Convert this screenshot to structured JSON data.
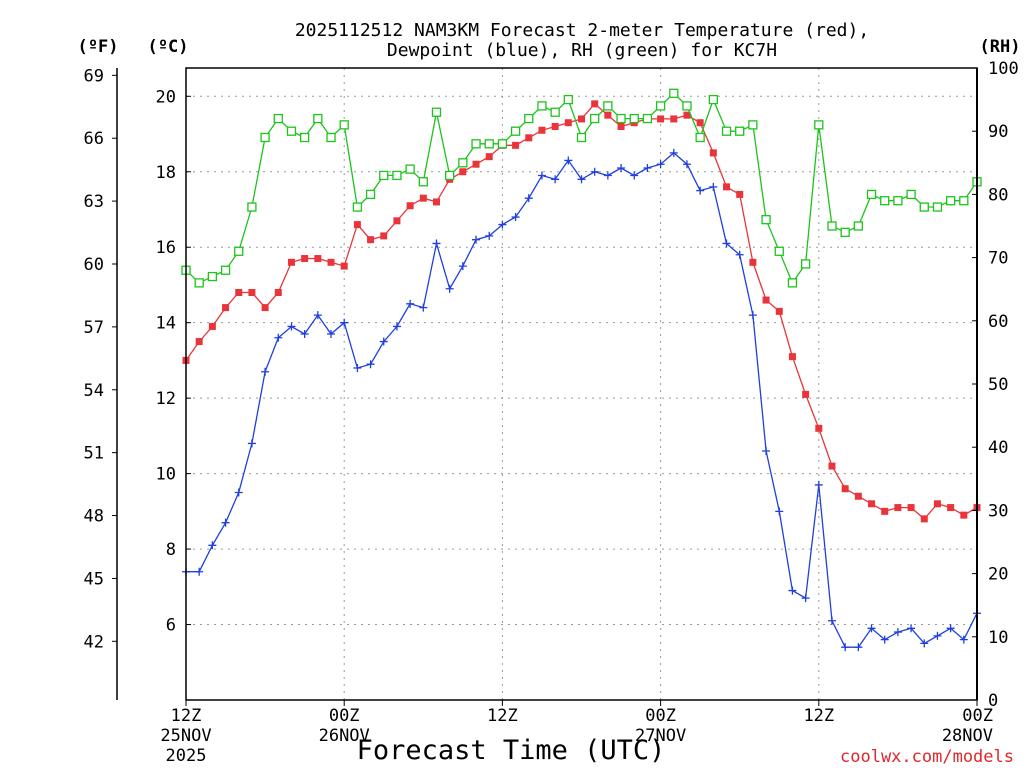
{
  "chart_data": {
    "type": "line",
    "title_line1": "2025112512 NAM3KM Forecast 2-meter Temperature (red),",
    "title_line2": "Dewpoint (blue), RH (green) for KC7H",
    "units": {
      "fahrenheit": "(ºF)",
      "celsius": "(ºC)",
      "rh": "(RH)"
    },
    "xlabel": "Forecast Time (UTC)",
    "credit": "coolwx.com/models",
    "x_hours_range": [
      0,
      60
    ],
    "y_celsius_range": [
      4,
      20.75
    ],
    "y_rh_range": [
      0,
      100
    ],
    "ticks_celsius": [
      "6",
      "8",
      "10",
      "12",
      "14",
      "16",
      "18",
      "20"
    ],
    "ticks_fahrenheit": [
      "42",
      "45",
      "48",
      "51",
      "54",
      "57",
      "60",
      "63",
      "66",
      "69"
    ],
    "ticks_rh": [
      "0",
      "10",
      "20",
      "30",
      "40",
      "50",
      "60",
      "70",
      "80",
      "90",
      "100"
    ],
    "x_ticks": [
      {
        "hour": 0,
        "line1": "12Z",
        "line2": "25NOV",
        "line3": "2025"
      },
      {
        "hour": 12,
        "line1": "00Z",
        "line2": "26NOV",
        "line3": ""
      },
      {
        "hour": 24,
        "line1": "12Z",
        "line2": "",
        "line3": ""
      },
      {
        "hour": 36,
        "line1": "00Z",
        "line2": "27NOV",
        "line3": ""
      },
      {
        "hour": 48,
        "line1": "12Z",
        "line2": "",
        "line3": ""
      },
      {
        "hour": 60,
        "line1": "00Z",
        "line2": "28NOV",
        "line3": ""
      }
    ],
    "series": [
      {
        "name": "Temperature",
        "axis": "celsius",
        "color": "#e8343a",
        "marker": "filled-square",
        "x": [
          0,
          1,
          2,
          3,
          4,
          5,
          6,
          7,
          8,
          9,
          10,
          11,
          12,
          13,
          14,
          15,
          16,
          17,
          18,
          19,
          20,
          21,
          22,
          23,
          24,
          25,
          26,
          27,
          28,
          29,
          30,
          31,
          32,
          33,
          34,
          35,
          36,
          37,
          38,
          39,
          40,
          41,
          42,
          43,
          44,
          45,
          46,
          47,
          48,
          49,
          50,
          51,
          52,
          53,
          54,
          55,
          56,
          57,
          58,
          59,
          60
        ],
        "values": [
          13.0,
          13.5,
          13.9,
          14.4,
          14.8,
          14.8,
          14.4,
          14.8,
          15.6,
          15.7,
          15.7,
          15.6,
          15.5,
          16.6,
          16.2,
          16.3,
          16.7,
          17.1,
          17.3,
          17.2,
          17.8,
          18.0,
          18.2,
          18.4,
          18.7,
          18.7,
          18.9,
          19.1,
          19.2,
          19.3,
          19.4,
          19.8,
          19.5,
          19.2,
          19.3,
          19.4,
          19.4,
          19.4,
          19.5,
          19.3,
          18.5,
          17.6,
          17.4,
          15.6,
          14.6,
          14.3,
          13.1,
          12.1,
          11.2,
          10.2,
          9.6,
          9.4,
          9.2,
          9.0,
          9.1,
          9.1,
          8.8,
          9.2,
          9.1,
          8.9,
          9.1
        ]
      },
      {
        "name": "Dewpoint",
        "axis": "celsius",
        "color": "#1f3fe0",
        "marker": "plus",
        "x": [
          0,
          1,
          2,
          3,
          4,
          5,
          6,
          7,
          8,
          9,
          10,
          11,
          12,
          13,
          14,
          15,
          16,
          17,
          18,
          19,
          20,
          21,
          22,
          23,
          24,
          25,
          26,
          27,
          28,
          29,
          30,
          31,
          32,
          33,
          34,
          35,
          36,
          37,
          38,
          39,
          40,
          41,
          42,
          43,
          44,
          45,
          46,
          47,
          48,
          49,
          50,
          51,
          52,
          53,
          54,
          55,
          56,
          57,
          58,
          59,
          60
        ],
        "values": [
          7.4,
          7.4,
          8.1,
          8.7,
          9.5,
          10.8,
          12.7,
          13.6,
          13.9,
          13.7,
          14.2,
          13.7,
          14.0,
          12.8,
          12.9,
          13.5,
          13.9,
          14.5,
          14.4,
          16.1,
          14.9,
          15.5,
          16.2,
          16.3,
          16.6,
          16.8,
          17.3,
          17.9,
          17.8,
          18.3,
          17.8,
          18.0,
          17.9,
          18.1,
          17.9,
          18.1,
          18.2,
          18.5,
          18.2,
          17.5,
          17.6,
          16.1,
          15.8,
          14.2,
          10.6,
          9.0,
          6.9,
          6.7,
          9.7,
          6.1,
          5.4,
          5.4,
          5.9,
          5.6,
          5.8,
          5.9,
          5.5,
          5.7,
          5.9,
          5.6,
          6.3
        ]
      },
      {
        "name": "RH",
        "axis": "rh",
        "color": "#1cc41c",
        "marker": "open-square",
        "x": [
          0,
          1,
          2,
          3,
          4,
          5,
          6,
          7,
          8,
          9,
          10,
          11,
          12,
          13,
          14,
          15,
          16,
          17,
          18,
          19,
          20,
          21,
          22,
          23,
          24,
          25,
          26,
          27,
          28,
          29,
          30,
          31,
          32,
          33,
          34,
          35,
          36,
          37,
          38,
          39,
          40,
          41,
          42,
          43,
          44,
          45,
          46,
          47,
          48,
          49,
          50,
          51,
          52,
          53,
          54,
          55,
          56,
          57,
          58,
          59,
          60
        ],
        "values": [
          68,
          66,
          67,
          68,
          71,
          78,
          89,
          92,
          90,
          89,
          92,
          89,
          91,
          78,
          80,
          83,
          83,
          84,
          82,
          93,
          83,
          85,
          88,
          88,
          88,
          90,
          92,
          94,
          93,
          95,
          89,
          92,
          94,
          92,
          92,
          92,
          94,
          96,
          94,
          89,
          95,
          90,
          90,
          91,
          76,
          71,
          66,
          69,
          91,
          75,
          74,
          75,
          80,
          79,
          79,
          80,
          78,
          78,
          79,
          79,
          82
        ]
      }
    ]
  }
}
